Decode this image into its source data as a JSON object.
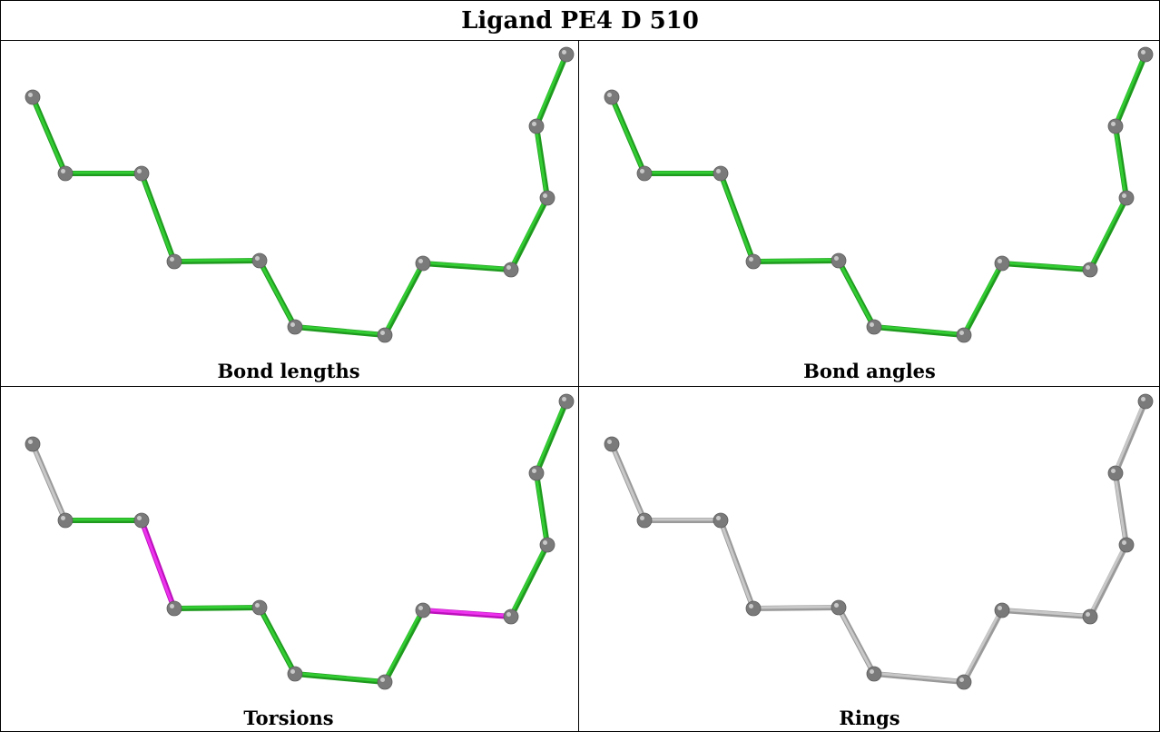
{
  "title": "Ligand PE4 D 510",
  "panels": [
    {
      "caption": "Bond lengths",
      "bond_colors": [
        "green",
        "green",
        "green",
        "green",
        "green",
        "green",
        "green",
        "green",
        "green",
        "green",
        "green",
        "green"
      ]
    },
    {
      "caption": "Bond angles",
      "bond_colors": [
        "green",
        "green",
        "green",
        "green",
        "green",
        "green",
        "green",
        "green",
        "green",
        "green",
        "green",
        "green"
      ]
    },
    {
      "caption": "Torsions",
      "bond_colors": [
        "grey",
        "green",
        "magenta",
        "green",
        "green",
        "green",
        "green",
        "magenta",
        "green",
        "green",
        "green",
        "grey"
      ]
    },
    {
      "caption": "Rings",
      "bond_colors": [
        "grey",
        "grey",
        "grey",
        "grey",
        "grey",
        "grey",
        "grey",
        "grey",
        "grey",
        "grey",
        "grey",
        "grey"
      ]
    }
  ],
  "colors": {
    "green": "#33cc33",
    "green_dark": "#1f9a1f",
    "magenta": "#ee33ee",
    "magenta_dark": "#bb11bb",
    "grey": "#c8c8c8",
    "grey_dark": "#9a9a9a",
    "atom": "#7a7a7a",
    "atom_highlight": "#c9c9c9"
  }
}
